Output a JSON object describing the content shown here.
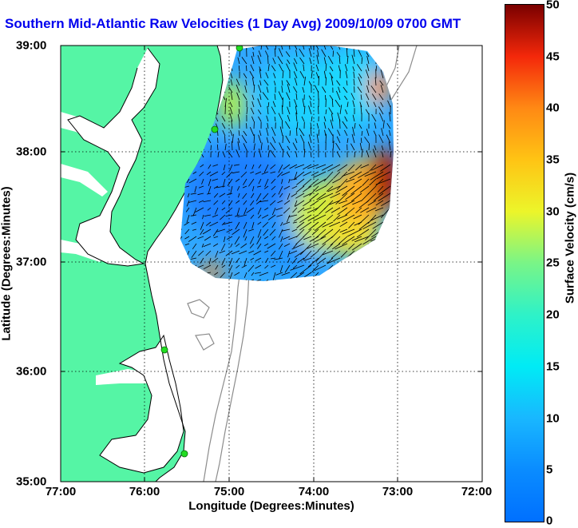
{
  "title": "Southern Mid-Atlantic Raw Velocities (1 Day Avg) 2009/10/09 0700 GMT",
  "xlabel": "Longitude (Degrees:Minutes)",
  "ylabel": "Latitude (Degrees:Minutes)",
  "x_ticks": [
    "77:00",
    "76:00",
    "75:00",
    "74:00",
    "73:00",
    "72:00"
  ],
  "y_ticks": [
    "39:00",
    "38:00",
    "37:00",
    "36:00",
    "35:00"
  ],
  "colorbar": {
    "label": "Surface Velocity (cm/s)",
    "ticks": [
      "0",
      "5",
      "10",
      "15",
      "20",
      "25",
      "30",
      "35",
      "40",
      "45",
      "50"
    ],
    "range": [
      0,
      50
    ],
    "colors": [
      "#0070ff",
      "#19b7ff",
      "#2ef2c8",
      "#ecf52a",
      "#ff8914",
      "#7a0000"
    ]
  },
  "colors": {
    "land": "#55f5a5",
    "water": "#ffffff",
    "title": "#0000ee",
    "bathymetry": "#8c8c8c",
    "site_marker": "#22dd22"
  },
  "map": {
    "lon_range": [
      "77:00",
      "72:00"
    ],
    "lat_range": [
      "35:00",
      "39:00"
    ],
    "grid": true,
    "sites_count": 4
  }
}
